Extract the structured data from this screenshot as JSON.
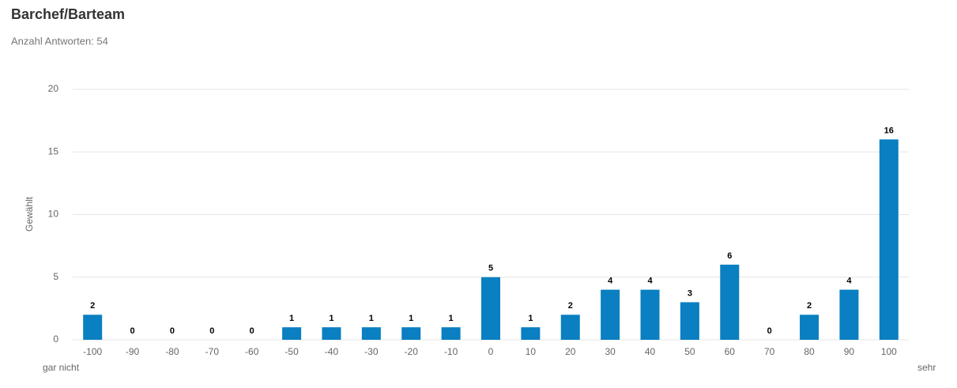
{
  "chart_data": {
    "type": "bar",
    "title": "Barchef/Barteam",
    "subtitle": "Anzahl Antworten: 54",
    "y_label": "Gewählt",
    "annotations": [
      "gar nicht",
      "sehr"
    ],
    "categories": [
      -100,
      -90,
      -80,
      -70,
      -60,
      -50,
      -40,
      -30,
      -20,
      -10,
      0,
      10,
      20,
      30,
      40,
      50,
      60,
      70,
      80,
      90,
      100
    ],
    "values": [
      2,
      0,
      0,
      0,
      0,
      1,
      1,
      1,
      1,
      1,
      5,
      1,
      2,
      4,
      4,
      3,
      6,
      0,
      2,
      4,
      16
    ],
    "color": "#0a7fc1",
    "ylim": [
      0,
      20
    ],
    "yticks": [
      0,
      5,
      10,
      15,
      20
    ],
    "grid": true
  }
}
